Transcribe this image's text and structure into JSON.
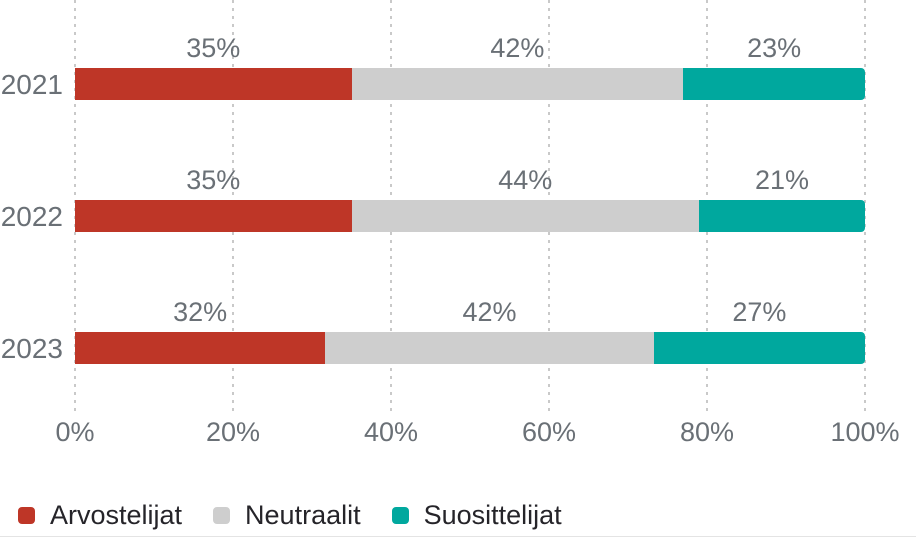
{
  "chart_data": {
    "type": "bar",
    "orientation": "horizontal",
    "stacked": true,
    "unit": "%",
    "categories": [
      "2021",
      "2022",
      "2023"
    ],
    "series": [
      {
        "name": "Arvostelijat",
        "color": "#be3627",
        "values": [
          35,
          35,
          32
        ]
      },
      {
        "name": "Neutraalit",
        "color": "#cecece",
        "values": [
          42,
          44,
          42
        ]
      },
      {
        "name": "Suosittelijat",
        "color": "#00a89e",
        "values": [
          23,
          21,
          27
        ]
      }
    ],
    "data_labels": [
      "35%",
      "42%",
      "23%",
      "35%",
      "44%",
      "21%",
      "32%",
      "42%",
      "27%"
    ],
    "x_tick_labels": [
      "0%",
      "20%",
      "40%",
      "60%",
      "80%",
      "100%"
    ],
    "xlim": [
      0,
      100
    ],
    "grid": "vertical-dotted",
    "legend_position": "bottom",
    "title": ""
  },
  "colors": {
    "background": "#ffffff",
    "label_text": "#6a7076",
    "legend_text": "#252429",
    "gridline": "#c9c9c9",
    "divider": "#e4e4e4"
  }
}
